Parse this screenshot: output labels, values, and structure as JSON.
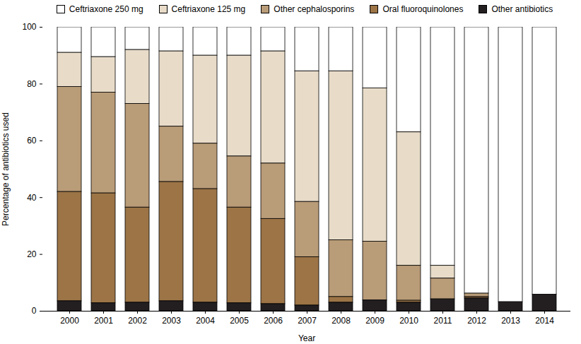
{
  "chart_data": {
    "type": "bar",
    "stacked": true,
    "x_label": "Year",
    "y_label": "Percentage of antibiotics used",
    "categories": [
      "2000",
      "2001",
      "2002",
      "2003",
      "2004",
      "2005",
      "2006",
      "2007",
      "2008",
      "2009",
      "2010",
      "2011",
      "2012",
      "2013",
      "2014"
    ],
    "ylim": [
      0,
      100
    ],
    "yticks": [
      0,
      20,
      40,
      60,
      80,
      100
    ],
    "grid": false,
    "legend": "top",
    "series": [
      {
        "name": "Ceftriaxone 250 mg",
        "color": "#ffffff",
        "values": [
          9,
          10.5,
          8,
          8.5,
          10,
          10,
          8.5,
          15.5,
          15.5,
          21.5,
          37,
          84,
          93.8,
          96.8,
          94.2
        ]
      },
      {
        "name": "Ceftriaxone 125 mg",
        "color": "#e8dcc9",
        "values": [
          12,
          12.5,
          19,
          26.5,
          31,
          35.5,
          39.5,
          46,
          59.5,
          54,
          47,
          4.5,
          0,
          0,
          0
        ]
      },
      {
        "name": "Other cephalosporins",
        "color": "#b99c78",
        "values": [
          37,
          35.5,
          36.5,
          19.5,
          16,
          18,
          19.5,
          19.5,
          20,
          20.7,
          12.3,
          7.3,
          1.2,
          0,
          0
        ]
      },
      {
        "name": "Oral fluoroquinolones",
        "color": "#9c7446",
        "values": [
          38.5,
          38.7,
          33.5,
          42,
          40,
          33.7,
          30,
          17,
          2,
          0,
          0.7,
          0,
          0.5,
          0,
          0
        ]
      },
      {
        "name": "Other antibiotics",
        "color": "#231f20",
        "values": [
          3.5,
          2.8,
          3,
          3.5,
          3,
          2.8,
          2.5,
          2,
          3,
          3.8,
          3,
          4.2,
          4.5,
          3.2,
          5.8
        ]
      }
    ]
  }
}
